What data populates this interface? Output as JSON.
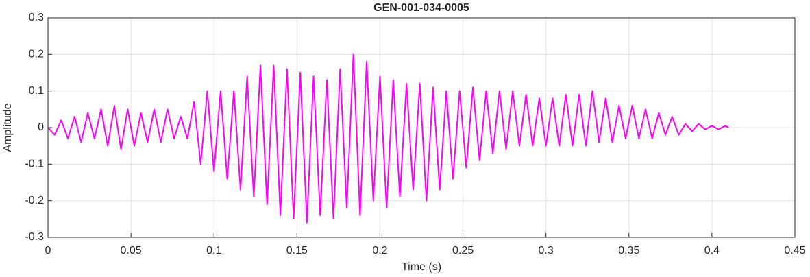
{
  "chart_data": {
    "type": "line",
    "title": "GEN-001-034-0005",
    "x_label": "Time (s)",
    "y_label": "Amplitude",
    "xlim": [
      0,
      0.45
    ],
    "ylim": [
      -0.3,
      0.3
    ],
    "xticks": [
      0,
      0.05,
      0.1,
      0.15,
      0.2,
      0.25,
      0.3,
      0.35,
      0.4,
      0.45
    ],
    "yticks": [
      -0.3,
      -0.2,
      -0.1,
      0,
      0.1,
      0.2,
      0.3
    ],
    "grid": true,
    "x": [
      0,
      0.004,
      0.008,
      0.012,
      0.016,
      0.02,
      0.024,
      0.028,
      0.032,
      0.036,
      0.04,
      0.044,
      0.048,
      0.052,
      0.056,
      0.06,
      0.064,
      0.068,
      0.072,
      0.076,
      0.08,
      0.084,
      0.088,
      0.092,
      0.096,
      0.1,
      0.104,
      0.108,
      0.112,
      0.116,
      0.12,
      0.124,
      0.128,
      0.132,
      0.136,
      0.14,
      0.144,
      0.148,
      0.152,
      0.156,
      0.16,
      0.164,
      0.168,
      0.172,
      0.176,
      0.18,
      0.184,
      0.188,
      0.192,
      0.196,
      0.2,
      0.204,
      0.208,
      0.212,
      0.216,
      0.22,
      0.224,
      0.228,
      0.232,
      0.236,
      0.24,
      0.244,
      0.248,
      0.252,
      0.256,
      0.26,
      0.264,
      0.268,
      0.272,
      0.276,
      0.28,
      0.284,
      0.288,
      0.292,
      0.296,
      0.3,
      0.304,
      0.308,
      0.312,
      0.316,
      0.32,
      0.324,
      0.328,
      0.332,
      0.336,
      0.34,
      0.344,
      0.348,
      0.352,
      0.356,
      0.36,
      0.364,
      0.368,
      0.372,
      0.376,
      0.38,
      0.384,
      0.388,
      0.392,
      0.396,
      0.4,
      0.404,
      0.408,
      0.41
    ],
    "series": [
      {
        "color": "#ff00ff",
        "values": [
          0,
          -0.02,
          0.02,
          -0.03,
          0.03,
          -0.04,
          0.04,
          -0.03,
          0.05,
          -0.05,
          0.06,
          -0.06,
          0.05,
          -0.05,
          0.04,
          -0.04,
          0.05,
          -0.04,
          0.05,
          -0.03,
          0.03,
          -0.03,
          0.07,
          -0.1,
          0.1,
          -0.12,
          0.1,
          -0.14,
          0.1,
          -0.17,
          0.14,
          -0.19,
          0.17,
          -0.21,
          0.17,
          -0.24,
          0.16,
          -0.25,
          0.15,
          -0.26,
          0.14,
          -0.24,
          0.13,
          -0.25,
          0.16,
          -0.22,
          0.2,
          -0.24,
          0.18,
          -0.2,
          0.14,
          -0.22,
          0.13,
          -0.19,
          0.12,
          -0.17,
          0.12,
          -0.2,
          0.11,
          -0.17,
          0.1,
          -0.14,
          0.1,
          -0.11,
          0.11,
          -0.09,
          0.1,
          -0.07,
          0.1,
          -0.06,
          0.1,
          -0.05,
          0.09,
          -0.05,
          0.08,
          -0.05,
          0.08,
          -0.05,
          0.09,
          -0.05,
          0.09,
          -0.05,
          0.1,
          -0.04,
          0.08,
          -0.04,
          0.06,
          -0.03,
          0.06,
          -0.03,
          0.05,
          -0.03,
          0.04,
          -0.02,
          0.03,
          -0.02,
          0.01,
          -0.01,
          0.01,
          -0.005,
          0.005,
          -0.005,
          0.005,
          0
        ]
      }
    ]
  }
}
